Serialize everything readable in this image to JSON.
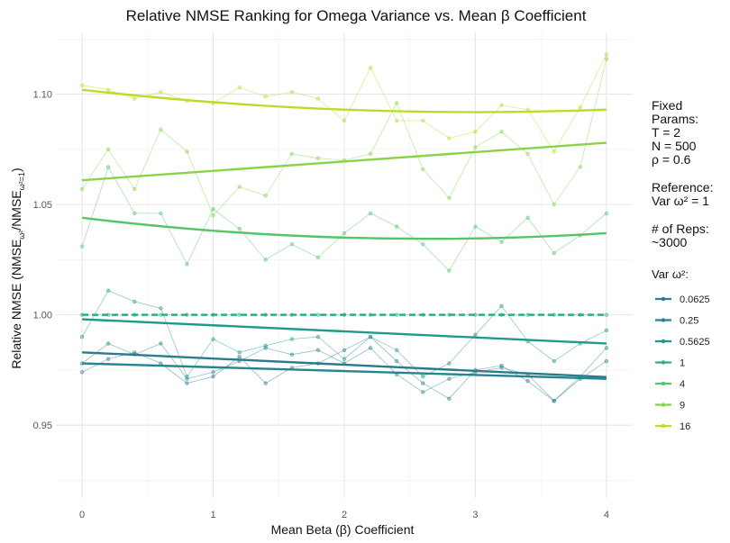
{
  "chart_data": {
    "type": "line",
    "title": "Relative NMSE Ranking for Omega Variance vs. Mean β Coefficient",
    "xlabel": "Mean Beta (β) Coefficient",
    "ylabel": "Relative NMSE (NMSE",
    "ylabel_sub1": "ω²",
    "ylabel_mid": "/NMSE",
    "ylabel_sub2": "ω²=1",
    "ylabel_end": ")",
    "xlim": [
      -0.2,
      4.2
    ],
    "ylim": [
      0.917,
      1.128
    ],
    "xticks": [
      0,
      1,
      2,
      3,
      4
    ],
    "yticks": [
      0.95,
      1.0,
      1.05,
      1.1
    ],
    "ytick_labels": [
      "0.95",
      "1.00",
      "1.05",
      "1.10"
    ],
    "grid": true,
    "legend_position": "right",
    "annotations": {
      "fixed_params": [
        "Fixed",
        "Params:",
        "T = 2",
        "N = 500",
        "ρ = 0.6"
      ],
      "reference": [
        "Reference:",
        "Var ω² = 1"
      ],
      "reps": [
        "# of Reps:",
        "~3000"
      ]
    },
    "legend_title": "Var ω²:",
    "x": [
      0,
      0.2,
      0.4,
      0.6,
      0.8,
      1.0,
      1.2,
      1.4,
      1.6,
      1.8,
      2.0,
      2.2,
      2.4,
      2.6,
      2.8,
      3.0,
      3.2,
      3.4,
      3.6,
      3.8,
      4.0
    ],
    "series": [
      {
        "name": "0.0625",
        "color": "#2a7b8e",
        "values": [
          0.974,
          0.98,
          0.983,
          0.978,
          0.969,
          0.972,
          0.981,
          0.969,
          0.976,
          0.978,
          0.984,
          0.99,
          0.979,
          0.969,
          0.962,
          0.975,
          0.977,
          0.97,
          0.961,
          0.971,
          0.979
        ],
        "trend": [
          0.983,
          0.9718
        ]
      },
      {
        "name": "0.25",
        "color": "#25858e",
        "values": [
          0.978,
          0.987,
          0.982,
          0.987,
          0.971,
          0.974,
          0.979,
          0.985,
          0.982,
          0.984,
          0.978,
          0.985,
          0.973,
          0.965,
          0.971,
          0.974,
          0.976,
          0.973,
          0.961,
          0.972,
          0.985
        ],
        "trend": [
          0.978,
          0.971
        ]
      },
      {
        "name": "0.5625",
        "color": "#1f9a8a",
        "values": [
          0.99,
          1.011,
          1.006,
          1.003,
          0.972,
          0.989,
          0.983,
          0.986,
          0.989,
          0.99,
          0.98,
          0.99,
          0.984,
          0.972,
          0.978,
          0.991,
          1.004,
          0.988,
          0.979,
          0.987,
          0.993
        ],
        "trend": [
          0.998,
          0.987
        ]
      },
      {
        "name": "1",
        "color": "#29af7f",
        "values": [
          1.0,
          1.0,
          1.0,
          1.0,
          1.0,
          1.0,
          1.0,
          1.0,
          1.0,
          1.0,
          1.0,
          1.0,
          1.0,
          1.0,
          1.0,
          1.0,
          1.0,
          1.0,
          1.0,
          1.0,
          1.0
        ],
        "trend": [
          1.0,
          1.0
        ],
        "dashed": true
      },
      {
        "name": "4",
        "color": "#52c569",
        "values": [
          1.031,
          1.067,
          1.046,
          1.046,
          1.023,
          1.048,
          1.039,
          1.025,
          1.032,
          1.026,
          1.037,
          1.046,
          1.04,
          1.032,
          1.02,
          1.04,
          1.033,
          1.044,
          1.028,
          1.036,
          1.046
        ],
        "trend": [
          1.044,
          1.035,
          1.037
        ]
      },
      {
        "name": "9",
        "color": "#86d549",
        "values": [
          1.057,
          1.075,
          1.057,
          1.084,
          1.074,
          1.045,
          1.058,
          1.054,
          1.073,
          1.071,
          1.07,
          1.073,
          1.096,
          1.066,
          1.053,
          1.076,
          1.083,
          1.073,
          1.05,
          1.067,
          1.116
        ],
        "trend": [
          1.061,
          1.078
        ]
      },
      {
        "name": "16",
        "color": "#b8de29",
        "values": [
          1.104,
          1.102,
          1.098,
          1.101,
          1.097,
          1.096,
          1.103,
          1.099,
          1.101,
          1.098,
          1.088,
          1.112,
          1.088,
          1.088,
          1.08,
          1.083,
          1.095,
          1.093,
          1.074,
          1.094,
          1.118
        ],
        "trend": [
          1.102,
          1.093,
          1.093
        ]
      }
    ]
  }
}
